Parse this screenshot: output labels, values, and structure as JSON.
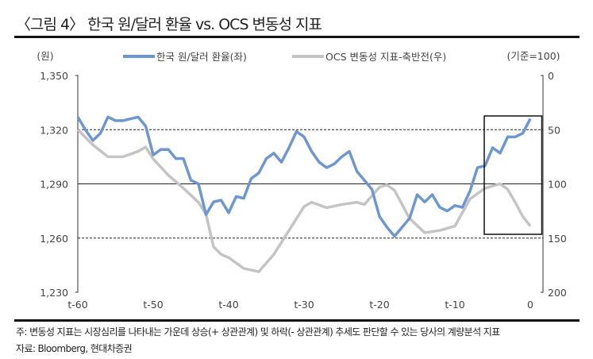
{
  "title": "〈그림 4〉 한국 원/달러 환율 vs. OCS 변동성 지표",
  "note": "주: 변동성 지표는 시장심리를 나타내는 가운데 상승(+ 상관관계) 및 하락(- 상관관계) 추세도 판단할 수 있는 당사의 계량분석 지표",
  "source": "자료: Bloomberg, 현대차증권",
  "chart_data": {
    "type": "line",
    "ylabel_left": "(원)",
    "ylabel_right": "(기준=100)",
    "ylim_left": [
      1230,
      1350
    ],
    "ylim_right": [
      200,
      0
    ],
    "yticks_left": [
      "1,350",
      "1,320",
      "1,290",
      "1,260",
      "1,230"
    ],
    "yticks_right": [
      "0",
      "50",
      "100",
      "150",
      "200"
    ],
    "xticks": [
      "t-60",
      "t-50",
      "t-40",
      "t-30",
      "t-20",
      "t-10",
      "0"
    ],
    "colors": {
      "krw": "#6f97cf",
      "ocs": "#c4c4c4"
    },
    "series": [
      {
        "name": "한국 원/달러 환율(좌)",
        "axis": "left",
        "x": [
          -60,
          -59,
          -58,
          -57,
          -56,
          -55,
          -54,
          -53,
          -52,
          -51,
          -50,
          -49,
          -48,
          -47,
          -46,
          -45,
          -44,
          -43,
          -42,
          -41,
          -40,
          -39,
          -38,
          -37,
          -36,
          -35,
          -34,
          -33,
          -32,
          -31,
          -30,
          -29,
          -28,
          -27,
          -26,
          -25,
          -24,
          -23,
          -22,
          -21,
          -20,
          -19,
          -18,
          -17,
          -16,
          -15,
          -14,
          -13,
          -12,
          -11,
          -10,
          -9,
          -8,
          -7,
          -6,
          -5,
          -4,
          -3,
          -2,
          -1,
          0
        ],
        "y": [
          1327,
          1320,
          1314,
          1318,
          1327,
          1325,
          1325,
          1326,
          1327,
          1322,
          1306,
          1309,
          1309,
          1304,
          1304,
          1292,
          1290,
          1273,
          1280,
          1281,
          1274,
          1283,
          1282,
          1293,
          1296,
          1304,
          1307,
          1302,
          1310,
          1319,
          1316,
          1308,
          1302,
          1299,
          1301,
          1305,
          1308,
          1297,
          1292,
          1287,
          1272,
          1266,
          1261,
          1266,
          1271,
          1284,
          1280,
          1284,
          1277,
          1275,
          1278,
          1277,
          1286,
          1299,
          1300,
          1310,
          1307,
          1316,
          1316,
          1318,
          1326
        ]
      },
      {
        "name": "OCS 변동성 지표-축반전(우)",
        "axis": "right",
        "x": [
          -60,
          -58,
          -56,
          -54,
          -52,
          -51,
          -50,
          -48,
          -46,
          -44,
          -43,
          -42,
          -41,
          -40,
          -38,
          -36,
          -34,
          -32,
          -30,
          -29,
          -27,
          -25,
          -23,
          -22,
          -20,
          -19,
          -18,
          -16,
          -14,
          -12,
          -10,
          -8,
          -6,
          -4,
          -3,
          -2,
          -1,
          0
        ],
        "y": [
          50,
          64,
          75,
          75,
          70,
          66,
          77,
          92,
          104,
          117,
          128,
          158,
          165,
          168,
          178,
          181,
          165,
          143,
          121,
          117,
          122,
          119,
          117,
          119,
          103,
          101,
          106,
          132,
          145,
          143,
          139,
          114,
          104,
          100,
          105,
          117,
          130,
          139
        ]
      }
    ],
    "reference_lines_left": [
      1320,
      1290,
      1260
    ],
    "highlight_range_x": [
      -6,
      1
    ]
  }
}
